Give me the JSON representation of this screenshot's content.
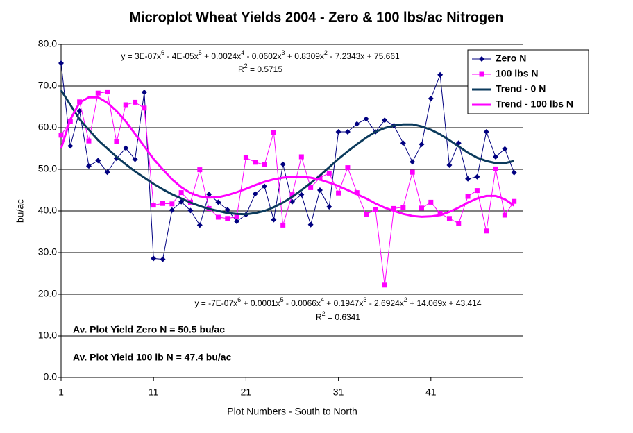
{
  "chart_data": {
    "type": "line",
    "title": "Microplot Wheat Yields 2004 - Zero & 100 lbs/ac Nitrogen",
    "x_label": "Plot Numbers - South to North",
    "y_label": "bu/ac",
    "x": [
      1,
      2,
      3,
      4,
      5,
      6,
      7,
      8,
      9,
      10,
      11,
      12,
      13,
      14,
      15,
      16,
      17,
      18,
      19,
      20,
      21,
      22,
      23,
      24,
      25,
      26,
      27,
      28,
      29,
      30,
      31,
      32,
      33,
      34,
      35,
      36,
      37,
      38,
      39,
      40,
      41,
      42,
      43,
      44,
      45,
      46,
      47,
      48,
      49,
      50
    ],
    "xlim": [
      1,
      51
    ],
    "xticks": [
      1,
      11,
      21,
      31,
      41
    ],
    "ylim": [
      0,
      80
    ],
    "yticks": [
      {
        "value": 0,
        "label": "0.0"
      },
      {
        "value": 10,
        "label": "10.0"
      },
      {
        "value": 20,
        "label": "20.0"
      },
      {
        "value": 30,
        "label": "30.0"
      },
      {
        "value": 40,
        "label": "40.0"
      },
      {
        "value": 50,
        "label": "50.0"
      },
      {
        "value": 60,
        "label": "60.0"
      },
      {
        "value": 70,
        "label": "70.0"
      },
      {
        "value": 80,
        "label": "80.0"
      }
    ],
    "grid": true,
    "legend": "top-right",
    "series": [
      {
        "name": "Zero N",
        "color": "#000080",
        "marker": "diamond",
        "width": 1,
        "values": [
          75.5,
          55.6,
          64.0,
          50.8,
          52.1,
          49.3,
          52.6,
          55.1,
          52.4,
          68.5,
          28.6,
          28.4,
          40.2,
          42.2,
          40.1,
          36.6,
          44.0,
          42.1,
          40.3,
          37.5,
          39.1,
          44.1,
          45.9,
          37.9,
          51.2,
          42.2,
          43.9,
          36.7,
          45.0,
          41.0,
          59.0,
          59.0,
          60.9,
          62.1,
          59.0,
          61.8,
          60.5,
          56.3,
          51.8,
          56.0,
          67.0,
          72.7,
          51.0,
          56.3,
          47.7,
          48.2,
          59.0,
          53.0,
          54.9,
          49.2
        ]
      },
      {
        "name": "100 lbs N",
        "color": "#ff00ff",
        "marker": "square",
        "width": 1,
        "values": [
          58.2,
          61.5,
          66.2,
          56.8,
          68.3,
          68.6,
          56.6,
          65.5,
          66.1,
          64.7,
          41.4,
          41.8,
          41.7,
          44.4,
          42.1,
          49.9,
          40.6,
          38.5,
          38.2,
          38.6,
          52.8,
          51.7,
          51.1,
          58.9,
          36.6,
          43.9,
          53.0,
          45.6,
          48.0,
          49.1,
          44.3,
          50.4,
          44.4,
          39.1,
          40.4,
          22.2,
          40.6,
          40.9,
          49.3,
          40.7,
          42.1,
          39.4,
          38.2,
          37.0,
          43.5,
          44.9,
          35.2,
          50.1,
          39.0,
          42.3
        ]
      },
      {
        "name": "Trend - 0 N",
        "color": "#0b3a5c",
        "marker": "none",
        "width": 3,
        "values": [
          69,
          65.5,
          62,
          59.5,
          57,
          55,
          53,
          51.2,
          49.5,
          48,
          46.5,
          45.2,
          44,
          43,
          42,
          41.2,
          40.5,
          40,
          39.5,
          39.3,
          39.2,
          39.5,
          40,
          40.9,
          42,
          43.4,
          45,
          46.7,
          48.5,
          50.5,
          52.5,
          54.3,
          56,
          57.6,
          59,
          59.9,
          60.5,
          60.8,
          60.8,
          60.3,
          59.5,
          58.4,
          57,
          55.5,
          54,
          52.8,
          52,
          51.5,
          51.5,
          52
        ]
      },
      {
        "name": "Trend - 100 lbs N",
        "color": "#ff00ff",
        "marker": "none",
        "width": 3,
        "values": [
          55,
          62,
          66,
          67.3,
          67.3,
          66,
          64,
          61.5,
          58.5,
          55.5,
          52.5,
          50,
          47.6,
          45.7,
          44.3,
          43.5,
          43.2,
          43.3,
          43.8,
          44.5,
          45.3,
          46.2,
          47,
          47.6,
          48,
          48.2,
          48.2,
          48,
          47.5,
          46.8,
          46,
          45,
          44,
          43,
          41.8,
          40.8,
          40,
          39.3,
          38.8,
          38.6,
          38.7,
          39,
          39.8,
          40.8,
          42,
          43,
          43.6,
          43.6,
          42.8,
          41.3
        ]
      }
    ],
    "equation_0N": [
      "y = 3E-07x",
      "6",
      " - 4E-05x",
      "5",
      " + 0.0024x",
      "4",
      " - 0.0602x",
      "3",
      " + 0.8309x",
      "2",
      " - 7.2343x + 75.661"
    ],
    "r2_0N": [
      "R",
      "2",
      " = 0.5715"
    ],
    "equation_100N": [
      "y = -7E-07x",
      "6",
      " + 0.0001x",
      "5",
      " - 0.0066x",
      "4",
      " + 0.1947x",
      "3",
      " - 2.6924x",
      "2",
      " + 14.069x + 43.414"
    ],
    "r2_100N": [
      "R",
      "2",
      " = 0.6341"
    ],
    "annotations": [
      "Av. Plot Yield Zero N = 50.5 bu/ac",
      "Av. Plot Yield 100 lb N = 47.4 bu/ac"
    ]
  }
}
